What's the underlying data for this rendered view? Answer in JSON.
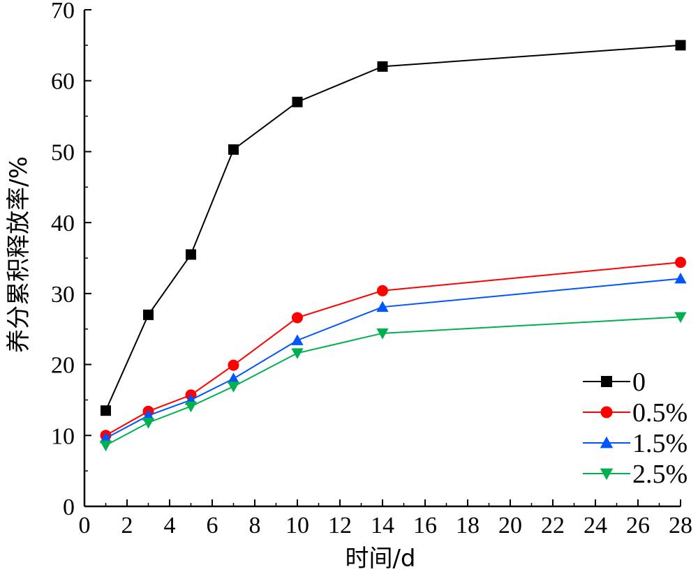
{
  "chart_data": {
    "type": "line",
    "xlabel": "时间/d",
    "ylabel": "养分累积释放率/%",
    "xlim": [
      0,
      28
    ],
    "ylim": [
      0,
      70
    ],
    "xticks": [
      0,
      2,
      4,
      6,
      8,
      10,
      12,
      14,
      16,
      18,
      20,
      22,
      24,
      26,
      28
    ],
    "yticks": [
      0,
      10,
      20,
      30,
      40,
      50,
      60,
      70
    ],
    "x": [
      1,
      3,
      5,
      7,
      10,
      14,
      28
    ],
    "grid": false,
    "legend_position": "bottom-right",
    "series": [
      {
        "name": "0",
        "color": "#000000",
        "marker": "square",
        "values": [
          13.5,
          27.0,
          35.5,
          50.3,
          57.0,
          62.0,
          65.0
        ]
      },
      {
        "name": "0.5%",
        "color": "#ff0000",
        "marker": "circle",
        "values": [
          10.0,
          13.4,
          15.7,
          19.9,
          26.6,
          30.4,
          34.4
        ]
      },
      {
        "name": "1.5%",
        "color": "#0055ff",
        "marker": "triangle-up",
        "values": [
          9.6,
          12.8,
          15.0,
          18.0,
          23.4,
          28.1,
          32.1
        ]
      },
      {
        "name": "2.5%",
        "color": "#00b04f",
        "marker": "triangle-down",
        "values": [
          8.6,
          11.8,
          14.1,
          16.9,
          21.6,
          24.4,
          26.7
        ]
      }
    ]
  }
}
